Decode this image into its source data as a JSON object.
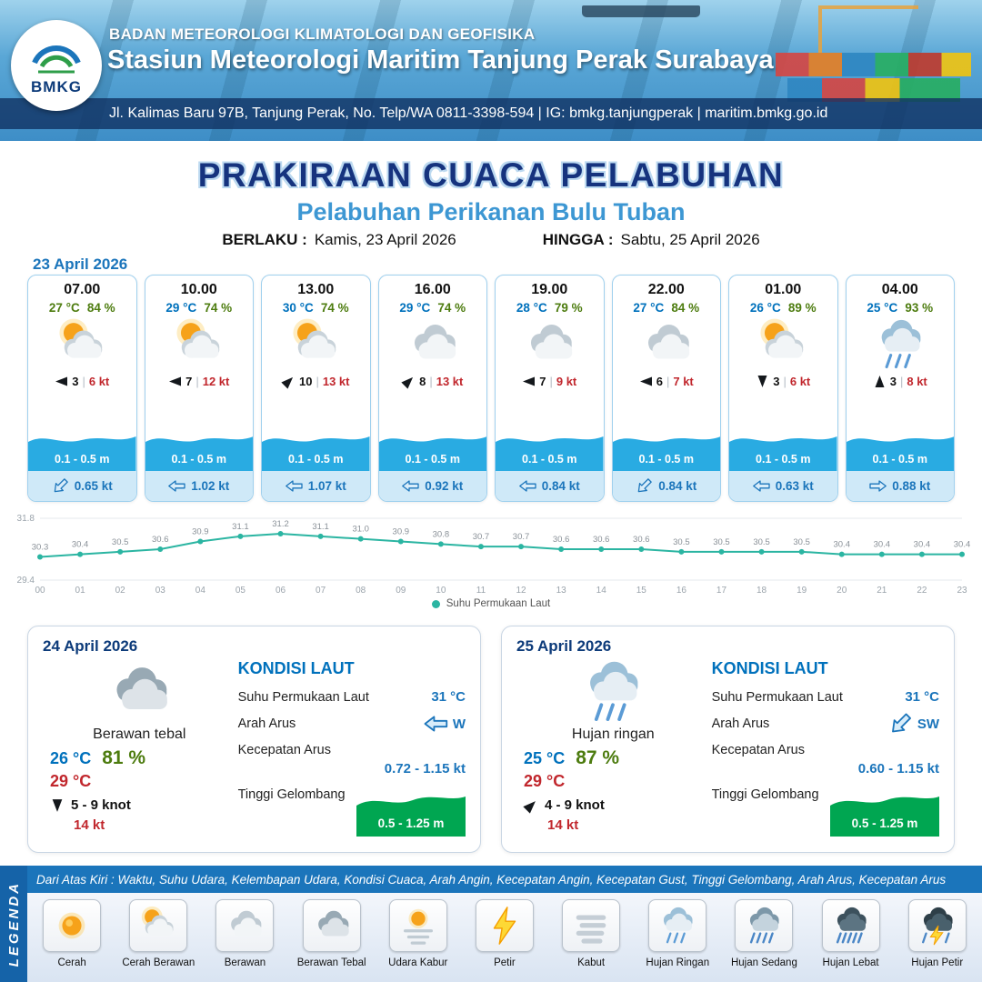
{
  "header": {
    "logo": "BMKG",
    "org": "BADAN METEOROLOGI KLIMATOLOGI DAN GEOFISIKA",
    "station": "Stasiun Meteorologi Maritim Tanjung Perak Surabaya",
    "address": "Jl. Kalimas Baru 97B, Tanjung Perak, No. Telp/WA 0811-3398-594 | IG: bmkg.tanjungperak | maritim.bmkg.go.id"
  },
  "title": {
    "main": "PRAKIRAAN CUACA PELABUHAN",
    "sub": "Pelabuhan Perikanan Bulu Tuban",
    "berlaku_label": "BERLAKU :",
    "berlaku_value": "Kamis, 23 April 2026",
    "hingga_label": "HINGGA :",
    "hingga_value": "Sabtu, 25 April 2026"
  },
  "forecast_date": "23 April 2026",
  "cards": [
    {
      "time": "07.00",
      "temp": "27 °C",
      "temp_color": "#4d7c0f",
      "rh": "84 %",
      "icon": "cerah-berawan",
      "wind_speed": "3",
      "sep": "|",
      "wind_gust": "6 kt",
      "wind_rot": 180,
      "wave": "0.1 - 0.5 m",
      "current": "0.65 kt",
      "current_rot": -45
    },
    {
      "time": "10.00",
      "temp": "29 °C",
      "temp_color": "#0071bc",
      "rh": "74 %",
      "icon": "cerah-berawan",
      "wind_speed": "7",
      "sep": "|",
      "wind_gust": "12 kt",
      "wind_rot": 180,
      "wave": "0.1 - 0.5 m",
      "current": "1.02 kt",
      "current_rot": 0
    },
    {
      "time": "13.00",
      "temp": "30 °C",
      "temp_color": "#0071bc",
      "rh": "74 %",
      "icon": "cerah-berawan",
      "wind_speed": "10",
      "sep": "|",
      "wind_gust": "13 kt",
      "wind_rot": -45,
      "wave": "0.1 - 0.5 m",
      "current": "1.07 kt",
      "current_rot": 0
    },
    {
      "time": "16.00",
      "temp": "29 °C",
      "temp_color": "#0071bc",
      "rh": "74 %",
      "icon": "berawan",
      "wind_speed": "8",
      "sep": "|",
      "wind_gust": "13 kt",
      "wind_rot": -45,
      "wave": "0.1 - 0.5 m",
      "current": "0.92 kt",
      "current_rot": 0
    },
    {
      "time": "19.00",
      "temp": "28 °C",
      "temp_color": "#0071bc",
      "rh": "79 %",
      "icon": "berawan",
      "wind_speed": "7",
      "sep": "|",
      "wind_gust": "9 kt",
      "wind_rot": 180,
      "wave": "0.1 - 0.5 m",
      "current": "0.84 kt",
      "current_rot": 0
    },
    {
      "time": "22.00",
      "temp": "27 °C",
      "temp_color": "#0071bc",
      "rh": "84 %",
      "icon": "berawan",
      "wind_speed": "6",
      "sep": "|",
      "wind_gust": "7 kt",
      "wind_rot": 180,
      "wave": "0.1 - 0.5 m",
      "current": "0.84 kt",
      "current_rot": -45
    },
    {
      "time": "01.00",
      "temp": "26 °C",
      "temp_color": "#0071bc",
      "rh": "89 %",
      "icon": "cerah-berawan",
      "wind_speed": "3",
      "sep": "|",
      "wind_gust": "6 kt",
      "wind_rot": 90,
      "wave": "0.1 - 0.5 m",
      "current": "0.63 kt",
      "current_rot": 0
    },
    {
      "time": "04.00",
      "temp": "25 °C",
      "temp_color": "#0071bc",
      "rh": "93 %",
      "icon": "hujan-ringan",
      "wind_speed": "3",
      "sep": "|",
      "wind_gust": "8 kt",
      "wind_rot": -90,
      "wave": "0.1 - 0.5 m",
      "current": "0.88 kt",
      "current_rot": 180
    }
  ],
  "chart_data": {
    "type": "line",
    "series_name": "Suhu Permukaan Laut",
    "x": [
      "00",
      "01",
      "02",
      "03",
      "04",
      "05",
      "06",
      "07",
      "08",
      "09",
      "10",
      "11",
      "12",
      "13",
      "14",
      "15",
      "16",
      "17",
      "18",
      "19",
      "20",
      "21",
      "22",
      "23"
    ],
    "values": [
      30.3,
      30.4,
      30.5,
      30.6,
      30.9,
      31.1,
      31.2,
      31.1,
      31.0,
      30.9,
      30.8,
      30.7,
      30.7,
      30.6,
      30.6,
      30.6,
      30.5,
      30.5,
      30.5,
      30.5,
      30.4,
      30.4,
      30.4,
      30.4
    ],
    "ylim": [
      29.4,
      31.8
    ],
    "line_color": "#2bb5a2",
    "legend_position": "bottom",
    "grid": true
  },
  "panels": [
    {
      "date": "24 April 2026",
      "icon": "berawan-tebal",
      "condition": "Berawan tebal",
      "temp_min": "26 °C",
      "rh": "81 %",
      "temp_max": "29 °C",
      "wind": "5  - 9 knot",
      "wind_rot": 90,
      "gust": "14 kt",
      "sea": {
        "title": "KONDISI LAUT",
        "sst_label": "Suhu Permukaan Laut",
        "sst": "31 °C",
        "arah_label": "Arah Arus",
        "arah": "W",
        "arah_rot": 0,
        "kecepatan_label": "Kecepatan Arus",
        "kecepatan": "0.72  - 1.15 kt",
        "gelombang_label": "Tinggi Gelombang",
        "gelombang": "0.5 - 1.25 m"
      }
    },
    {
      "date": "25 April 2026",
      "icon": "hujan-ringan",
      "condition": "Hujan ringan",
      "temp_min": "25 °C",
      "rh": "87 %",
      "temp_max": "29 °C",
      "wind": "4  - 9 knot",
      "wind_rot": -45,
      "gust": "14 kt",
      "sea": {
        "title": "KONDISI LAUT",
        "sst_label": "Suhu Permukaan Laut",
        "sst": "31 °C",
        "arah_label": "Arah Arus",
        "arah": "SW",
        "arah_rot": -45,
        "kecepatan_label": "Kecepatan Arus",
        "kecepatan": "0.60  - 1.15 kt",
        "gelombang_label": "Tinggi Gelombang",
        "gelombang": "0.5 - 1.25 m"
      }
    }
  ],
  "legend": {
    "tab": "LEGENDA",
    "note": "Dari Atas Kiri : Waktu, Suhu Udara, Kelembapan Udara, Kondisi Cuaca, Arah Angin, Kecepatan Angin, Kecepatan Gust, Tinggi Gelombang, Arah Arus, Kecepatan Arus",
    "items": [
      {
        "label": "Cerah",
        "icon": "cerah"
      },
      {
        "label": "Cerah Berawan",
        "icon": "cerah-berawan"
      },
      {
        "label": "Berawan",
        "icon": "berawan"
      },
      {
        "label": "Berawan Tebal",
        "icon": "berawan-tebal"
      },
      {
        "label": "Udara Kabur",
        "icon": "udara-kabur"
      },
      {
        "label": "Petir",
        "icon": "petir"
      },
      {
        "label": "Kabut",
        "icon": "kabut"
      },
      {
        "label": "Hujan Ringan",
        "icon": "hujan-ringan"
      },
      {
        "label": "Hujan Sedang",
        "icon": "hujan-sedang"
      },
      {
        "label": "Hujan Lebat",
        "icon": "hujan-lebat"
      },
      {
        "label": "Hujan Petir",
        "icon": "hujan-petir"
      }
    ]
  },
  "colors": {
    "primary_blue": "#1b75bb",
    "navy": "#16337e",
    "subtitle_blue": "#3d97d3",
    "temp_blue": "#0071bc",
    "humidity_green": "#4d7c0f",
    "gust_red": "#c1272d",
    "wave_blue": "#29abe2",
    "current_strip": "#cfe9f8",
    "sea_green": "#00a651",
    "chart_teal": "#2bb5a2"
  }
}
